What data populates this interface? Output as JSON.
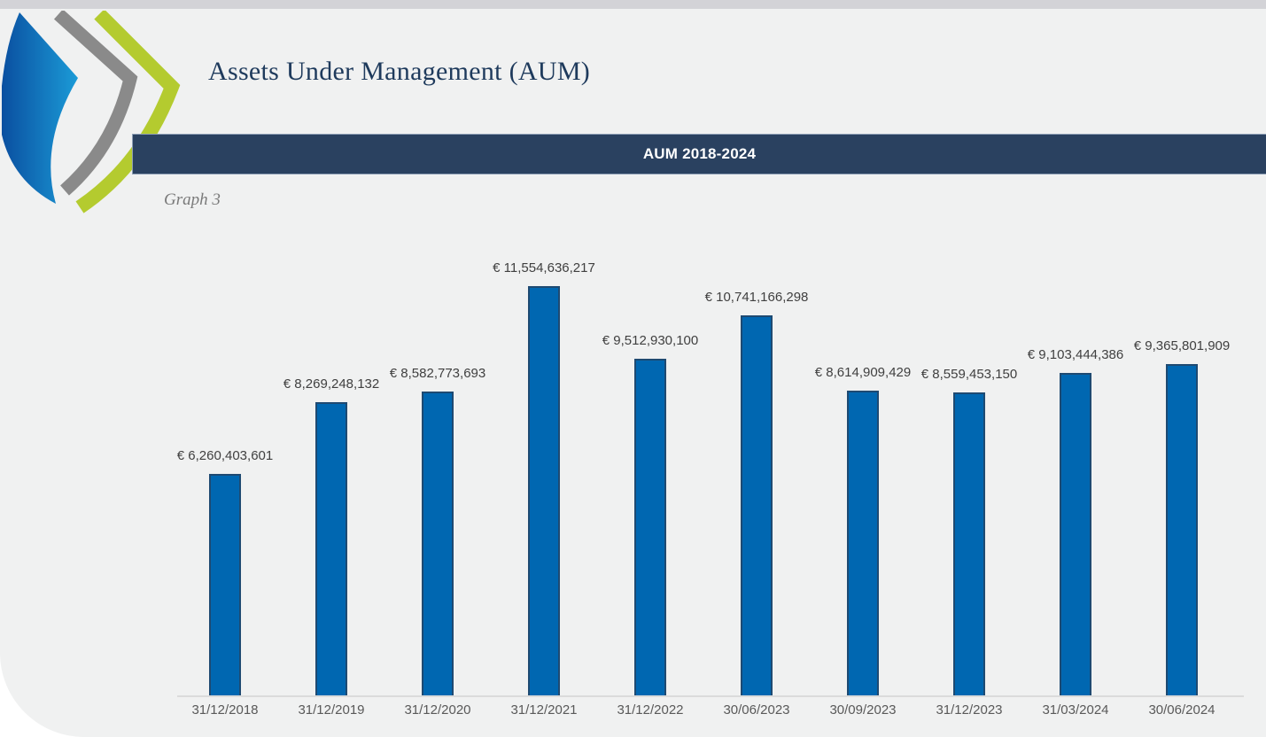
{
  "page": {
    "title": "Assets Under Management (AUM)",
    "banner_title": "AUM 2018-2024",
    "caption": "Graph 3"
  },
  "colors": {
    "page_bg": "#F0F1F1",
    "top_strip": "#D3D3D7",
    "banner_bg": "#2A4160",
    "banner_text": "#FFFFFF",
    "title_text": "#1E3A5C",
    "bar_fill": "#0067B1",
    "bar_border": "#1E4A72",
    "value_label_text": "#404040",
    "axis_label_text": "#595959",
    "axis_line": "#DBDBDB",
    "logo_blue": "#0A58A8",
    "logo_blue_light": "#1B9BD7",
    "logo_gray": "#8A8A8A",
    "logo_green": "#B4CB2F"
  },
  "icons": {
    "logo": "triple-chevron-leaf-logo"
  },
  "chart_data": {
    "type": "bar",
    "title": "AUM 2018-2024",
    "xlabel": "",
    "ylabel": "",
    "currency": "EUR",
    "grid": false,
    "legend": false,
    "y_axis_visible": false,
    "ylim": [
      0,
      11554636217
    ],
    "categories": [
      "31/12/2018",
      "31/12/2019",
      "31/12/2020",
      "31/12/2021",
      "31/12/2022",
      "30/06/2023",
      "30/09/2023",
      "31/12/2023",
      "31/03/2024",
      "30/06/2024"
    ],
    "values": [
      6260403601,
      8269248132,
      8582773693,
      11554636217,
      9512930100,
      10741166298,
      8614909429,
      8559453150,
      9103444386,
      9365801909
    ],
    "labels": [
      "€ 6,260,403,601",
      "€ 8,269,248,132",
      "€ 8,582,773,693",
      "€ 11,554,636,217",
      "€ 9,512,930,100",
      "€ 10,741,166,298",
      "€ 8,614,909,429",
      "€ 8,559,453,150",
      "€ 9,103,444,386",
      "€ 9,365,801,909"
    ]
  }
}
